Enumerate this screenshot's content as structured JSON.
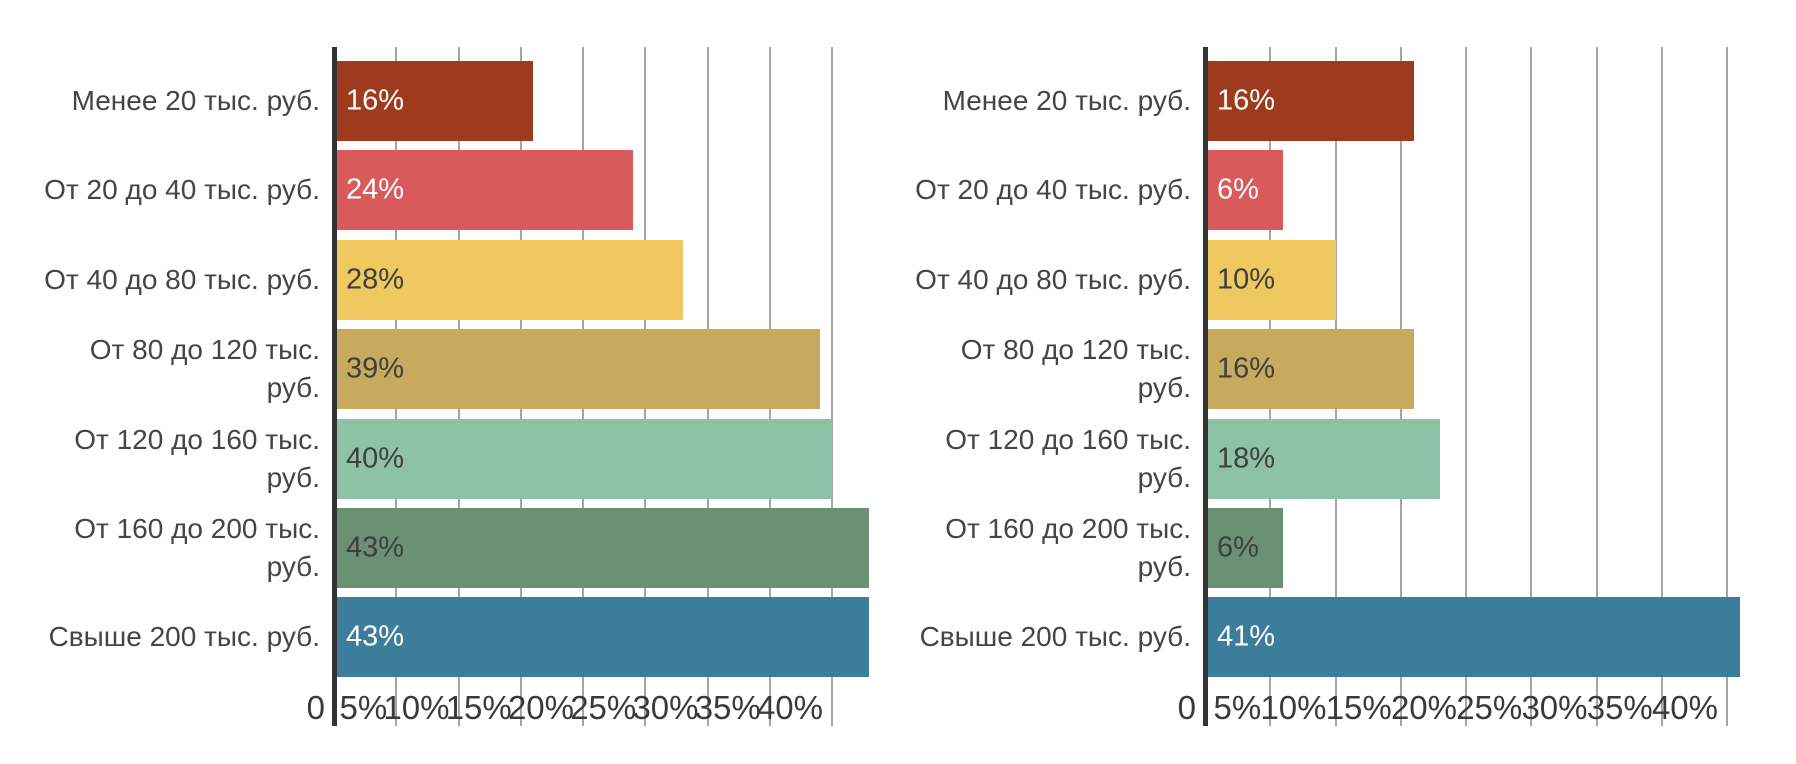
{
  "chart_data": [
    {
      "name": "left-income-chart",
      "type": "bar",
      "orientation": "horizontal",
      "title": "",
      "categories": [
        "Менее 20 тыс. руб.",
        "От 20 до 40 тыс. руб.",
        "От 40 до 80 тыс. руб.",
        "От 80 до 120 тыс. руб.",
        "От 120 до 160 тыс. руб.",
        "От 160 до 200 тыс. руб.",
        "Свыше 200 тыс. руб."
      ],
      "category_lines": [
        [
          "Менее 20 тыс. руб."
        ],
        [
          "От 20 до 40 тыс. руб."
        ],
        [
          "От 40 до 80 тыс. руб."
        ],
        [
          "От 80 до 120 тыс.",
          "руб."
        ],
        [
          "От 120 до 160 тыс.",
          "руб."
        ],
        [
          "От 160 до 200 тыс.",
          "руб."
        ],
        [
          "Свыше 200 тыс. руб."
        ]
      ],
      "values": [
        16,
        24,
        28,
        39,
        40,
        43,
        43
      ],
      "value_labels": [
        "16%",
        "24%",
        "28%",
        "39%",
        "40%",
        "43%",
        "43%"
      ],
      "bar_colors": [
        "#9E3A1D",
        "#D85A5A",
        "#EFC960",
        "#C8AA5E",
        "#8EC2A6",
        "#6B9175",
        "#3C7D9C"
      ],
      "value_label_colors": [
        "#FFFFFF",
        "#FFFFFF",
        "#3F3F3F",
        "#3F3F3F",
        "#3F3F3F",
        "#3F3F3F",
        "#FFFFFF"
      ],
      "x_tick_labels": [
        "0",
        "5%",
        "10%",
        "15%",
        "20%",
        "25%",
        "30%",
        "35%",
        "40%"
      ],
      "x_tick_values": [
        0,
        5,
        10,
        15,
        20,
        25,
        30,
        35,
        40
      ],
      "xlim": [
        0,
        43
      ],
      "grid": true,
      "legend": false,
      "axis_color": "#333333",
      "grid_color": "#A5A5A5"
    },
    {
      "name": "right-income-chart",
      "type": "bar",
      "orientation": "horizontal",
      "title": "",
      "categories": [
        "Менее 20 тыс. руб.",
        "От 20 до 40 тыс. руб.",
        "От 40 до 80 тыс. руб.",
        "От 80 до 120 тыс. руб.",
        "От 120 до 160 тыс. руб.",
        "От 160 до 200 тыс. руб.",
        "Свыше 200 тыс. руб."
      ],
      "category_lines": [
        [
          "Менее 20 тыс. руб."
        ],
        [
          "От 20 до 40 тыс. руб."
        ],
        [
          "От 40 до 80 тыс. руб."
        ],
        [
          "От 80 до 120 тыс.",
          "руб."
        ],
        [
          "От 120 до 160 тыс.",
          "руб."
        ],
        [
          "От 160 до 200 тыс.",
          "руб."
        ],
        [
          "Свыше 200 тыс. руб."
        ]
      ],
      "values": [
        16,
        6,
        10,
        16,
        18,
        6,
        41
      ],
      "value_labels": [
        "16%",
        "6%",
        "10%",
        "16%",
        "18%",
        "6%",
        "41%"
      ],
      "bar_colors": [
        "#9E3A1D",
        "#D85A5A",
        "#EFC960",
        "#C8AA5E",
        "#8EC2A6",
        "#6B9175",
        "#3C7D9C"
      ],
      "value_label_colors": [
        "#FFFFFF",
        "#FFFFFF",
        "#3F3F3F",
        "#3F3F3F",
        "#3F3F3F",
        "#3F3F3F",
        "#FFFFFF"
      ],
      "x_tick_labels": [
        "0",
        "5%",
        "10%",
        "15%",
        "20%",
        "25%",
        "30%",
        "35%",
        "40%"
      ],
      "x_tick_values": [
        0,
        5,
        10,
        15,
        20,
        25,
        30,
        35,
        40
      ],
      "xlim": [
        0,
        41
      ],
      "grid": true,
      "legend": false,
      "axis_color": "#333333",
      "grid_color": "#A5A5A5"
    }
  ]
}
